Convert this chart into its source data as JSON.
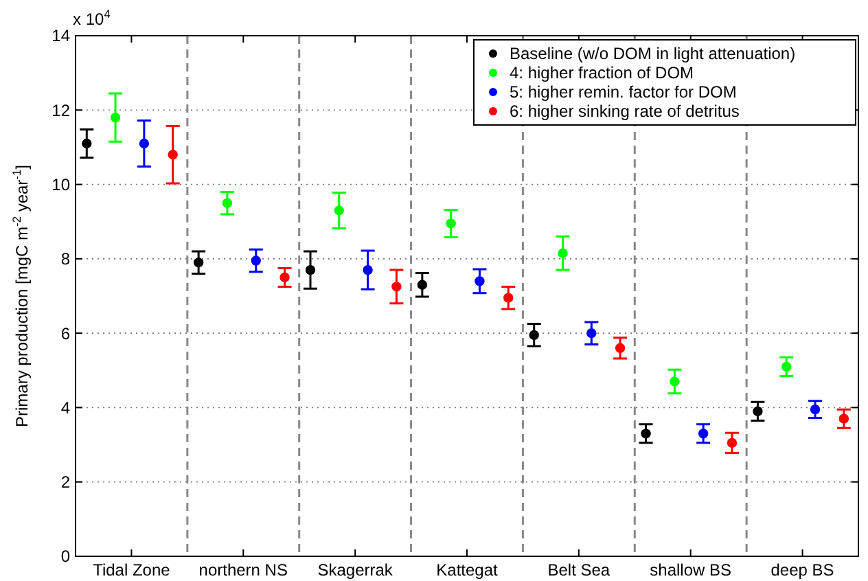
{
  "chart_data": {
    "type": "scatter",
    "ylabel": "Primary production  [mgC m$^{-2}$ year$^{-1}$]",
    "annotations": [
      "x 10$^{4}$"
    ],
    "categories": [
      "Tidal Zone",
      "northern NS",
      "Skagerrak",
      "Kattegat",
      "Belt Sea",
      "shallow BS",
      "deep BS"
    ],
    "series": [
      {
        "name": "Baseline (w/o DOM in light attenuation)",
        "color": "#000000",
        "values": [
          11.1,
          7.9,
          7.7,
          7.3,
          5.95,
          3.3,
          3.9
        ],
        "errors": [
          0.38,
          0.3,
          0.5,
          0.32,
          0.3,
          0.25,
          0.25
        ]
      },
      {
        "name": "4: higher fraction of DOM",
        "color": "#00ff00",
        "values": [
          11.8,
          9.5,
          9.3,
          8.95,
          8.15,
          4.7,
          5.1
        ],
        "errors": [
          0.65,
          0.3,
          0.48,
          0.37,
          0.45,
          0.32,
          0.25
        ]
      },
      {
        "name": "5: higher remin. factor for DOM",
        "color": "#0000ff",
        "values": [
          11.1,
          7.95,
          7.7,
          7.4,
          6.0,
          3.3,
          3.95
        ],
        "errors": [
          0.62,
          0.3,
          0.52,
          0.32,
          0.3,
          0.25,
          0.23
        ]
      },
      {
        "name": "6: higher sinking rate of detritus",
        "color": "#ff0000",
        "values": [
          10.8,
          7.5,
          7.25,
          6.95,
          5.6,
          3.05,
          3.7
        ],
        "errors": [
          0.77,
          0.25,
          0.45,
          0.3,
          0.28,
          0.27,
          0.25
        ]
      }
    ],
    "ylim": [
      0,
      14
    ],
    "yticks": [
      0,
      2,
      4,
      6,
      8,
      10,
      12,
      14
    ],
    "grid": "y",
    "legend": "top right",
    "marker": "circle"
  }
}
